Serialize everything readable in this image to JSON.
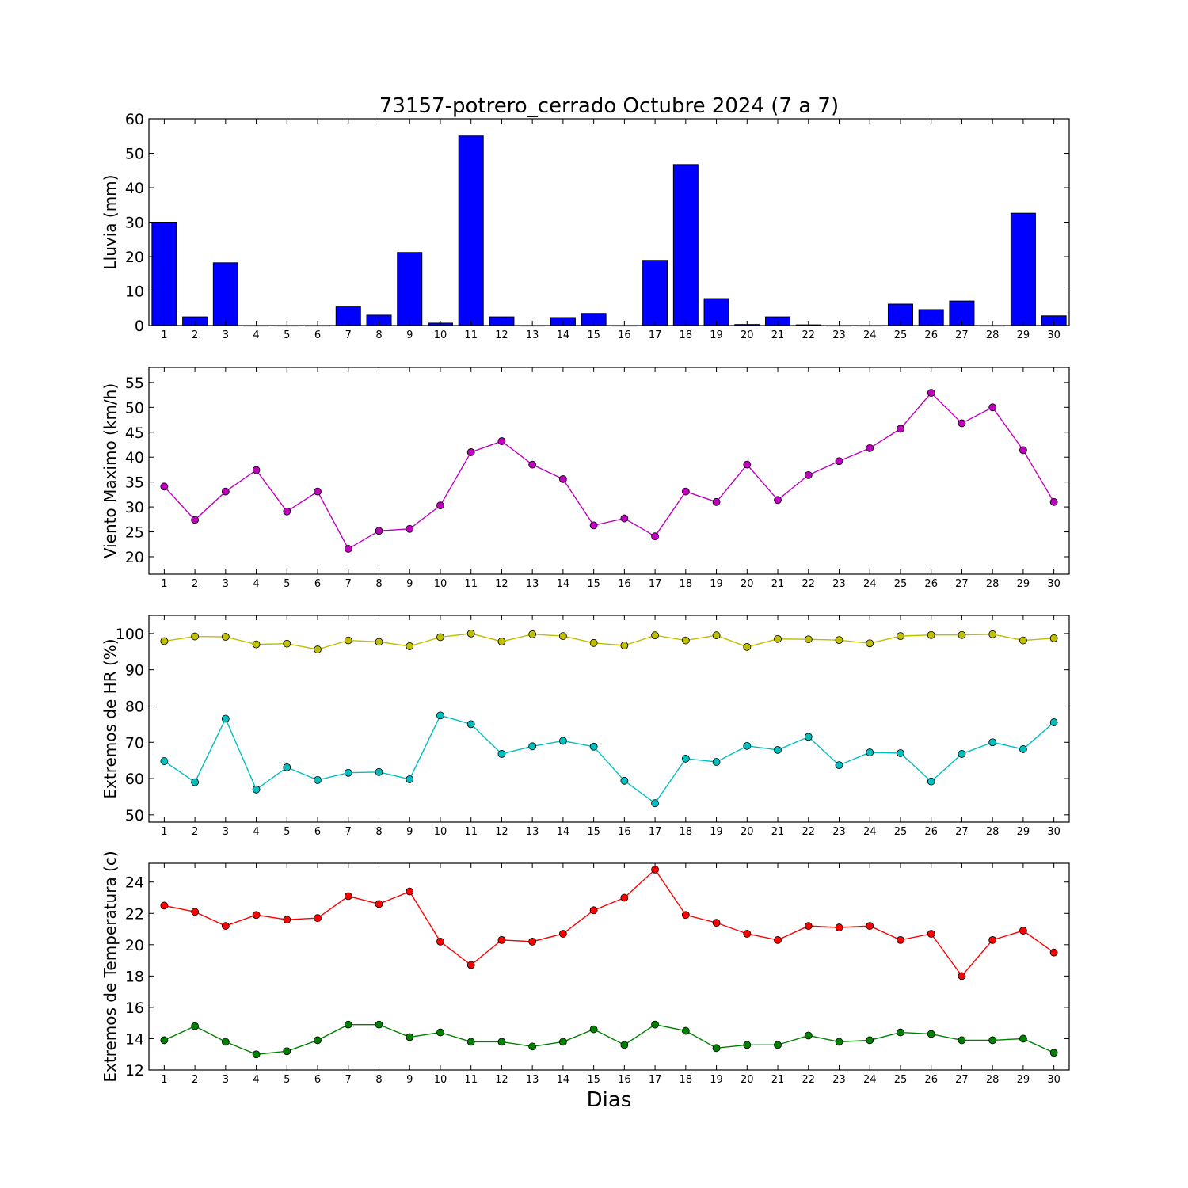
{
  "title": "73157-potrero_cerrado Octubre 2024  (7 a 7)",
  "xlabel": "Dias",
  "chart_data": [
    {
      "type": "bar",
      "ylabel": "Lluvia (mm)",
      "ylim": [
        0,
        60
      ],
      "yticks": [
        0,
        10,
        20,
        30,
        40,
        50,
        60
      ],
      "x": [
        1,
        2,
        3,
        4,
        5,
        6,
        7,
        8,
        9,
        10,
        11,
        12,
        13,
        14,
        15,
        16,
        17,
        18,
        19,
        20,
        21,
        22,
        23,
        24,
        25,
        26,
        27,
        28,
        29,
        30
      ],
      "series": [
        {
          "color": "#0000ff",
          "values": [
            30,
            2.5,
            18.2,
            0,
            0,
            0,
            5.6,
            3,
            21.2,
            0.7,
            55,
            2.5,
            0,
            2.3,
            3.5,
            0,
            18.9,
            46.7,
            7.8,
            0.3,
            2.5,
            0.2,
            0,
            0,
            6.2,
            4.6,
            7.1,
            0,
            32.6,
            2.8
          ]
        }
      ]
    },
    {
      "type": "line",
      "ylabel": "Viento Maximo (km/h)",
      "ylim": [
        16.5,
        58
      ],
      "yticks": [
        20,
        25,
        30,
        35,
        40,
        45,
        50,
        55
      ],
      "x": [
        1,
        2,
        3,
        4,
        5,
        6,
        7,
        8,
        9,
        10,
        11,
        12,
        13,
        14,
        15,
        16,
        17,
        18,
        19,
        20,
        21,
        22,
        23,
        24,
        25,
        26,
        27,
        28,
        29,
        30
      ],
      "series": [
        {
          "color": "#bf00bf",
          "values": [
            34.1,
            27.4,
            33.1,
            37.4,
            29.1,
            33.1,
            21.6,
            25.2,
            25.6,
            30.3,
            41,
            43.2,
            38.5,
            35.6,
            26.3,
            27.7,
            24.1,
            33.1,
            31,
            38.5,
            31.4,
            36.4,
            39.2,
            41.8,
            45.7,
            52.9,
            46.8,
            50,
            41.4,
            31
          ]
        }
      ]
    },
    {
      "type": "line",
      "ylabel": "Extremos de HR (%)",
      "ylim": [
        48,
        105
      ],
      "yticks": [
        50,
        60,
        70,
        80,
        90,
        100
      ],
      "x": [
        1,
        2,
        3,
        4,
        5,
        6,
        7,
        8,
        9,
        10,
        11,
        12,
        13,
        14,
        15,
        16,
        17,
        18,
        19,
        20,
        21,
        22,
        23,
        24,
        25,
        26,
        27,
        28,
        29,
        30
      ],
      "series": [
        {
          "color": "#bfbf00",
          "values": [
            97.9,
            99.2,
            99.1,
            97,
            97.2,
            95.6,
            98.1,
            97.7,
            96.5,
            99,
            100,
            97.8,
            99.8,
            99.3,
            97.4,
            96.7,
            99.5,
            98.1,
            99.5,
            96.3,
            98.5,
            98.4,
            98.2,
            97.3,
            99.3,
            99.6,
            99.6,
            99.8,
            98.1,
            98.7
          ]
        },
        {
          "color": "#00bfbf",
          "values": [
            64.8,
            59,
            76.5,
            57,
            63.1,
            59.6,
            61.6,
            61.8,
            59.8,
            77.4,
            75,
            66.8,
            68.9,
            70.4,
            68.8,
            59.4,
            53.2,
            65.5,
            64.6,
            69,
            67.9,
            71.5,
            63.7,
            67.2,
            67,
            59.2,
            66.8,
            70,
            68.1,
            75.5
          ]
        }
      ]
    },
    {
      "type": "line",
      "ylabel": "Extremos de Temperatura (c)",
      "ylim": [
        12,
        25.2
      ],
      "yticks": [
        12,
        14,
        16,
        18,
        20,
        22,
        24
      ],
      "x": [
        1,
        2,
        3,
        4,
        5,
        6,
        7,
        8,
        9,
        10,
        11,
        12,
        13,
        14,
        15,
        16,
        17,
        18,
        19,
        20,
        21,
        22,
        23,
        24,
        25,
        26,
        27,
        28,
        29,
        30
      ],
      "series": [
        {
          "color": "#ff0000",
          "values": [
            22.5,
            22.1,
            21.2,
            21.9,
            21.6,
            21.7,
            23.1,
            22.6,
            23.4,
            20.2,
            18.7,
            20.3,
            20.2,
            20.7,
            22.2,
            23,
            24.8,
            21.9,
            21.4,
            20.7,
            20.3,
            21.2,
            21.1,
            21.2,
            20.3,
            20.7,
            18,
            20.3,
            20.9,
            19.5
          ]
        },
        {
          "color": "#008000",
          "values": [
            13.9,
            14.8,
            13.8,
            13,
            13.2,
            13.9,
            14.9,
            14.9,
            14.1,
            14.4,
            13.8,
            13.8,
            13.5,
            13.8,
            14.6,
            13.6,
            14.9,
            14.5,
            13.4,
            13.6,
            13.6,
            14.2,
            13.8,
            13.9,
            14.4,
            14.3,
            13.9,
            13.9,
            14,
            13.1
          ]
        }
      ]
    }
  ]
}
